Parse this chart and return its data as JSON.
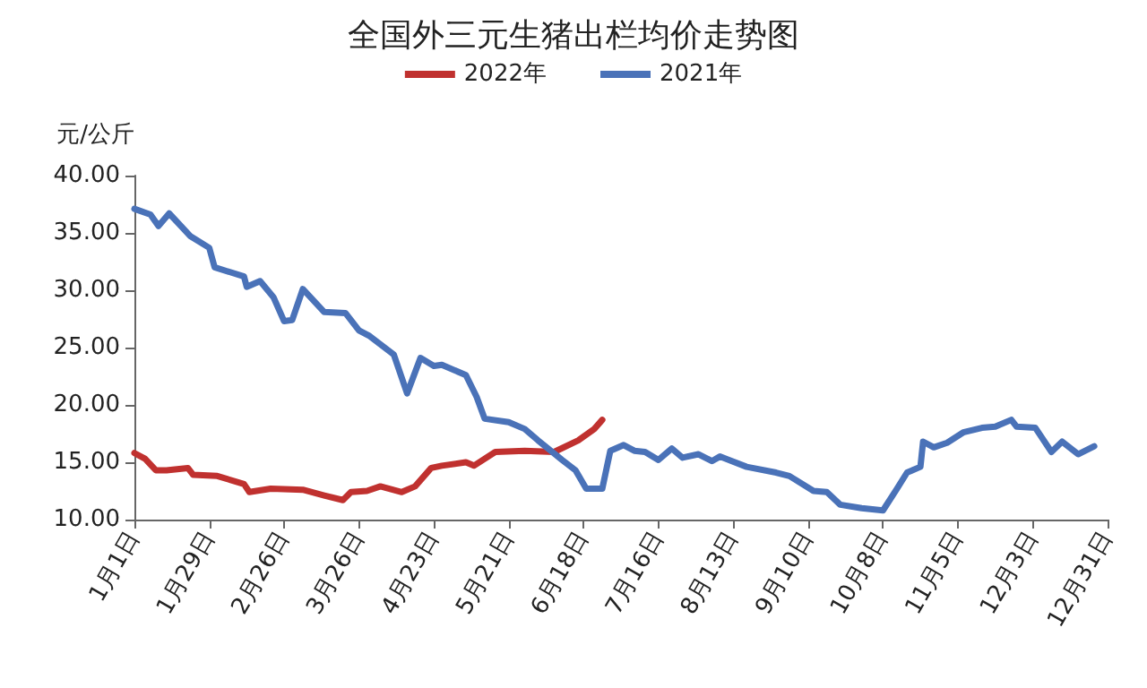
{
  "chart_data": {
    "type": "line",
    "title": "全国外三元生猪出栏均价走势图",
    "ylabel": "元/公斤",
    "legend": "top",
    "grid": false,
    "marker": "none",
    "line_style": "solid",
    "xlim": [
      "--01-01",
      "--12-31"
    ],
    "xticks": [
      {
        "value": "--01-01",
        "label": "1月1日"
      },
      {
        "value": "--01-29",
        "label": "1月29日"
      },
      {
        "value": "--02-26",
        "label": "2月26日"
      },
      {
        "value": "--03-26",
        "label": "3月26日"
      },
      {
        "value": "--04-23",
        "label": "4月23日"
      },
      {
        "value": "--05-21",
        "label": "5月21日"
      },
      {
        "value": "--06-18",
        "label": "6月18日"
      },
      {
        "value": "--07-16",
        "label": "7月16日"
      },
      {
        "value": "--08-13",
        "label": "8月13日"
      },
      {
        "value": "--09-10",
        "label": "9月10日"
      },
      {
        "value": "--10-08",
        "label": "10月8日"
      },
      {
        "value": "--11-05",
        "label": "11月5日"
      },
      {
        "value": "--12-03",
        "label": "12月3日"
      },
      {
        "value": "--12-31",
        "label": "12月31日"
      }
    ],
    "ylim": [
      10,
      40
    ],
    "yticks": [
      {
        "value": 10,
        "label": "10.00"
      },
      {
        "value": 15,
        "label": "15.00"
      },
      {
        "value": 20,
        "label": "20.00"
      },
      {
        "value": 25,
        "label": "25.00"
      },
      {
        "value": 30,
        "label": "30.00"
      },
      {
        "value": 35,
        "label": "35.00"
      },
      {
        "value": 40,
        "label": "40.00"
      }
    ],
    "series": [
      {
        "name": "2022年",
        "color": "#c0312f",
        "x": [
          "--01-01",
          "--01-05",
          "--01-09",
          "--01-13",
          "--01-21",
          "--01-23",
          "--02-01",
          "--02-11",
          "--02-13",
          "--02-21",
          "--03-05",
          "--03-13",
          "--03-20",
          "--03-23",
          "--03-29",
          "--04-03",
          "--04-11",
          "--04-16",
          "--04-22",
          "--04-26",
          "--05-05",
          "--05-08",
          "--05-16",
          "--05-27",
          "--06-07",
          "--06-16",
          "--06-22",
          "--06-25"
        ],
        "values": [
          15.8,
          15.3,
          14.3,
          14.3,
          14.5,
          13.9,
          13.8,
          13.1,
          12.4,
          12.7,
          12.6,
          12.1,
          11.7,
          12.4,
          12.5,
          12.9,
          12.4,
          12.9,
          14.5,
          14.7,
          15.0,
          14.7,
          15.9,
          16.0,
          15.9,
          16.9,
          17.9,
          18.7
        ]
      },
      {
        "name": "2021年",
        "color": "#4a72b8",
        "x": [
          "--01-01",
          "--01-07",
          "--01-10",
          "--01-14",
          "--01-22",
          "--01-29",
          "--01-31",
          "--02-11",
          "--02-12",
          "--02-17",
          "--02-22",
          "--02-26",
          "--03-01",
          "--03-05",
          "--03-13",
          "--03-21",
          "--03-26",
          "--03-30",
          "--04-08",
          "--04-13",
          "--04-18",
          "--04-23",
          "--04-26",
          "--05-05",
          "--05-09",
          "--05-12",
          "--05-21",
          "--05-27",
          "--06-01",
          "--06-10",
          "--06-15",
          "--06-19",
          "--06-25",
          "--06-28",
          "--07-03",
          "--07-07",
          "--07-11",
          "--07-16",
          "--07-21",
          "--07-25",
          "--07-31",
          "--08-05",
          "--08-08",
          "--08-18",
          "--08-29",
          "--09-03",
          "--09-12",
          "--09-17",
          "--09-22",
          "--09-30",
          "--10-08",
          "--10-13",
          "--10-17",
          "--10-22",
          "--10-23",
          "--10-27",
          "--11-01",
          "--11-07",
          "--11-14",
          "--11-19",
          "--11-25",
          "--11-27",
          "--12-04",
          "--12-10",
          "--12-14",
          "--12-20",
          "--12-26"
        ],
        "values": [
          37.1,
          36.6,
          35.6,
          36.7,
          34.7,
          33.7,
          32.0,
          31.2,
          30.3,
          30.8,
          29.4,
          27.3,
          27.4,
          30.1,
          28.1,
          28.0,
          26.5,
          26.0,
          24.4,
          21.0,
          24.1,
          23.4,
          23.5,
          22.6,
          20.7,
          18.8,
          18.5,
          17.9,
          16.9,
          15.2,
          14.3,
          12.7,
          12.7,
          16.0,
          16.5,
          16.0,
          15.9,
          15.2,
          16.2,
          15.4,
          15.7,
          15.1,
          15.5,
          14.6,
          14.1,
          13.8,
          12.5,
          12.4,
          11.3,
          11.0,
          10.8,
          12.6,
          14.1,
          14.6,
          16.8,
          16.3,
          16.7,
          17.6,
          18.0,
          18.1,
          18.7,
          18.1,
          18.0,
          15.9,
          16.8,
          15.7,
          16.4
        ]
      }
    ]
  }
}
